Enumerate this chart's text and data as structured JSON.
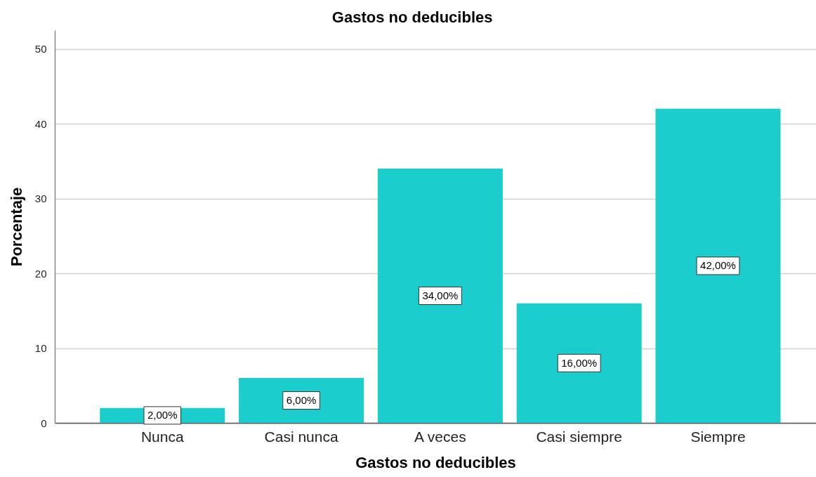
{
  "chart_data": {
    "type": "bar",
    "title": "Gastos no deducibles",
    "xlabel": "Gastos no deducibles",
    "ylabel": "Porcentaje",
    "categories": [
      "Nunca",
      "Casi nunca",
      "A veces",
      "Casi siempre",
      "Siempre"
    ],
    "values": [
      2,
      6,
      34,
      16,
      42
    ],
    "value_labels": [
      "2,00%",
      "6,00%",
      "34,00%",
      "16,00%",
      "42,00%"
    ],
    "color": "#1ccdcd",
    "ylim": [
      0,
      52.5
    ],
    "yticks": [
      0,
      10,
      20,
      30,
      40,
      50
    ],
    "grid": "y"
  }
}
